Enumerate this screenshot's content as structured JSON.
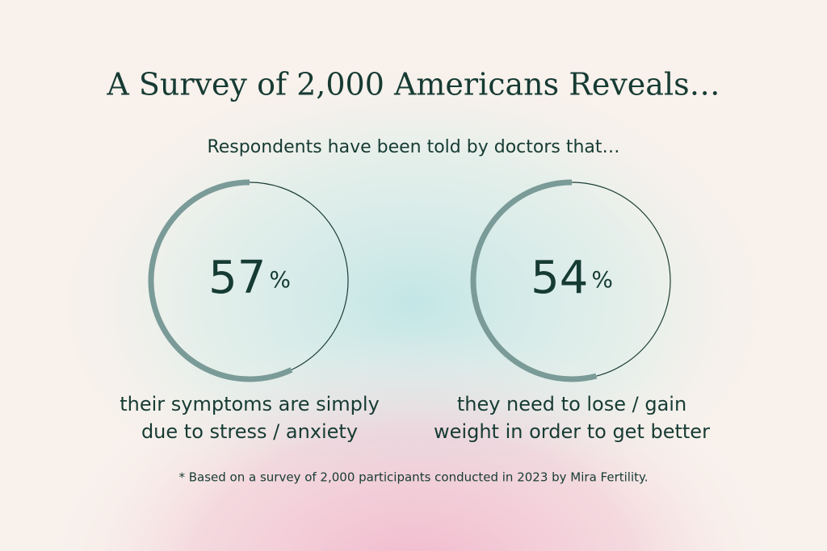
{
  "title": "A Survey of 2,000 Americans Reveals…",
  "subtitle": "Respondents have been told by doctors that…",
  "stats": [
    {
      "value": 57,
      "unit": "%",
      "caption": [
        "their symptoms are simply",
        "due to stress / anxiety"
      ]
    },
    {
      "value": 54,
      "unit": "%",
      "caption": [
        "they need to lose / gain",
        "weight in order to get better"
      ]
    }
  ],
  "footnote": "* Based on a survey of 2,000 participants conducted in 2023 by Mira Fertility."
}
